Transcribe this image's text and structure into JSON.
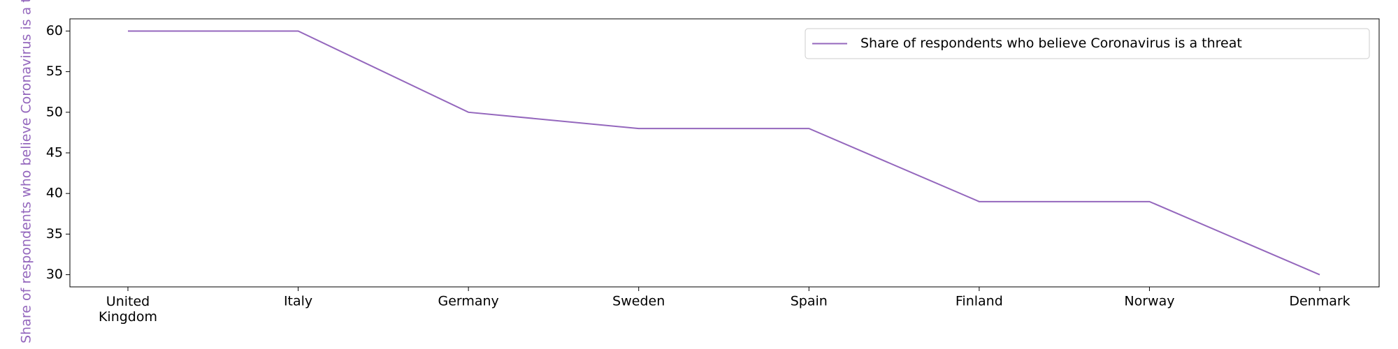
{
  "chart_data": {
    "type": "line",
    "ylabel": "Share of respondents who believe Coronavirus is a threat",
    "categories": [
      "United\nKingdom",
      "Italy",
      "Germany",
      "Sweden",
      "Spain",
      "Finland",
      "Norway",
      "Denmark"
    ],
    "series": [
      {
        "name": "Share of respondents who believe Coronavirus is a threat",
        "color": "#9467bd",
        "values": [
          60,
          60,
          50,
          48,
          48,
          39,
          39,
          30
        ]
      }
    ],
    "ylim": [
      28.5,
      61.5
    ],
    "yticks": [
      30,
      35,
      40,
      45,
      50,
      55,
      60
    ],
    "legend": "upper right"
  }
}
